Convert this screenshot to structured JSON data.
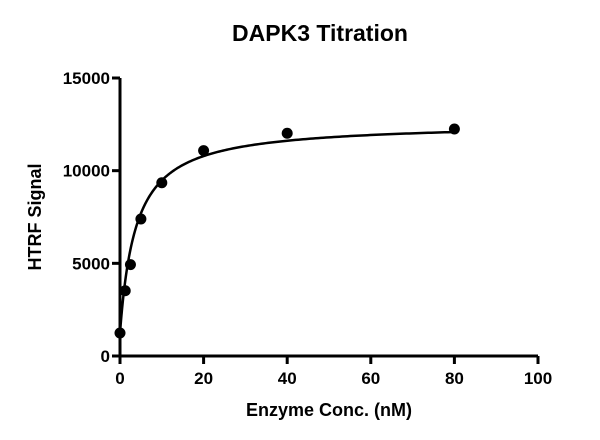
{
  "chart_data": {
    "type": "scatter",
    "title": "DAPK3 Titration",
    "xlabel": "Enzyme Conc. (nM)",
    "ylabel": "HTRF Signal",
    "xlim": [
      0,
      100
    ],
    "ylim": [
      0,
      15000
    ],
    "xticks": [
      0,
      20,
      40,
      60,
      80,
      100
    ],
    "yticks": [
      0,
      5000,
      10000,
      15000
    ],
    "grid": false,
    "legend": null,
    "series": [
      {
        "name": "DAPK3",
        "marker": "filled-circle",
        "color": "#000000",
        "x": [
          0,
          1.25,
          2.5,
          5,
          10,
          20,
          40,
          80
        ],
        "y": [
          1240,
          3520,
          4930,
          7390,
          9350,
          11080,
          12020,
          12250
        ],
        "fit": "hyperbolic saturation curve"
      }
    ]
  }
}
